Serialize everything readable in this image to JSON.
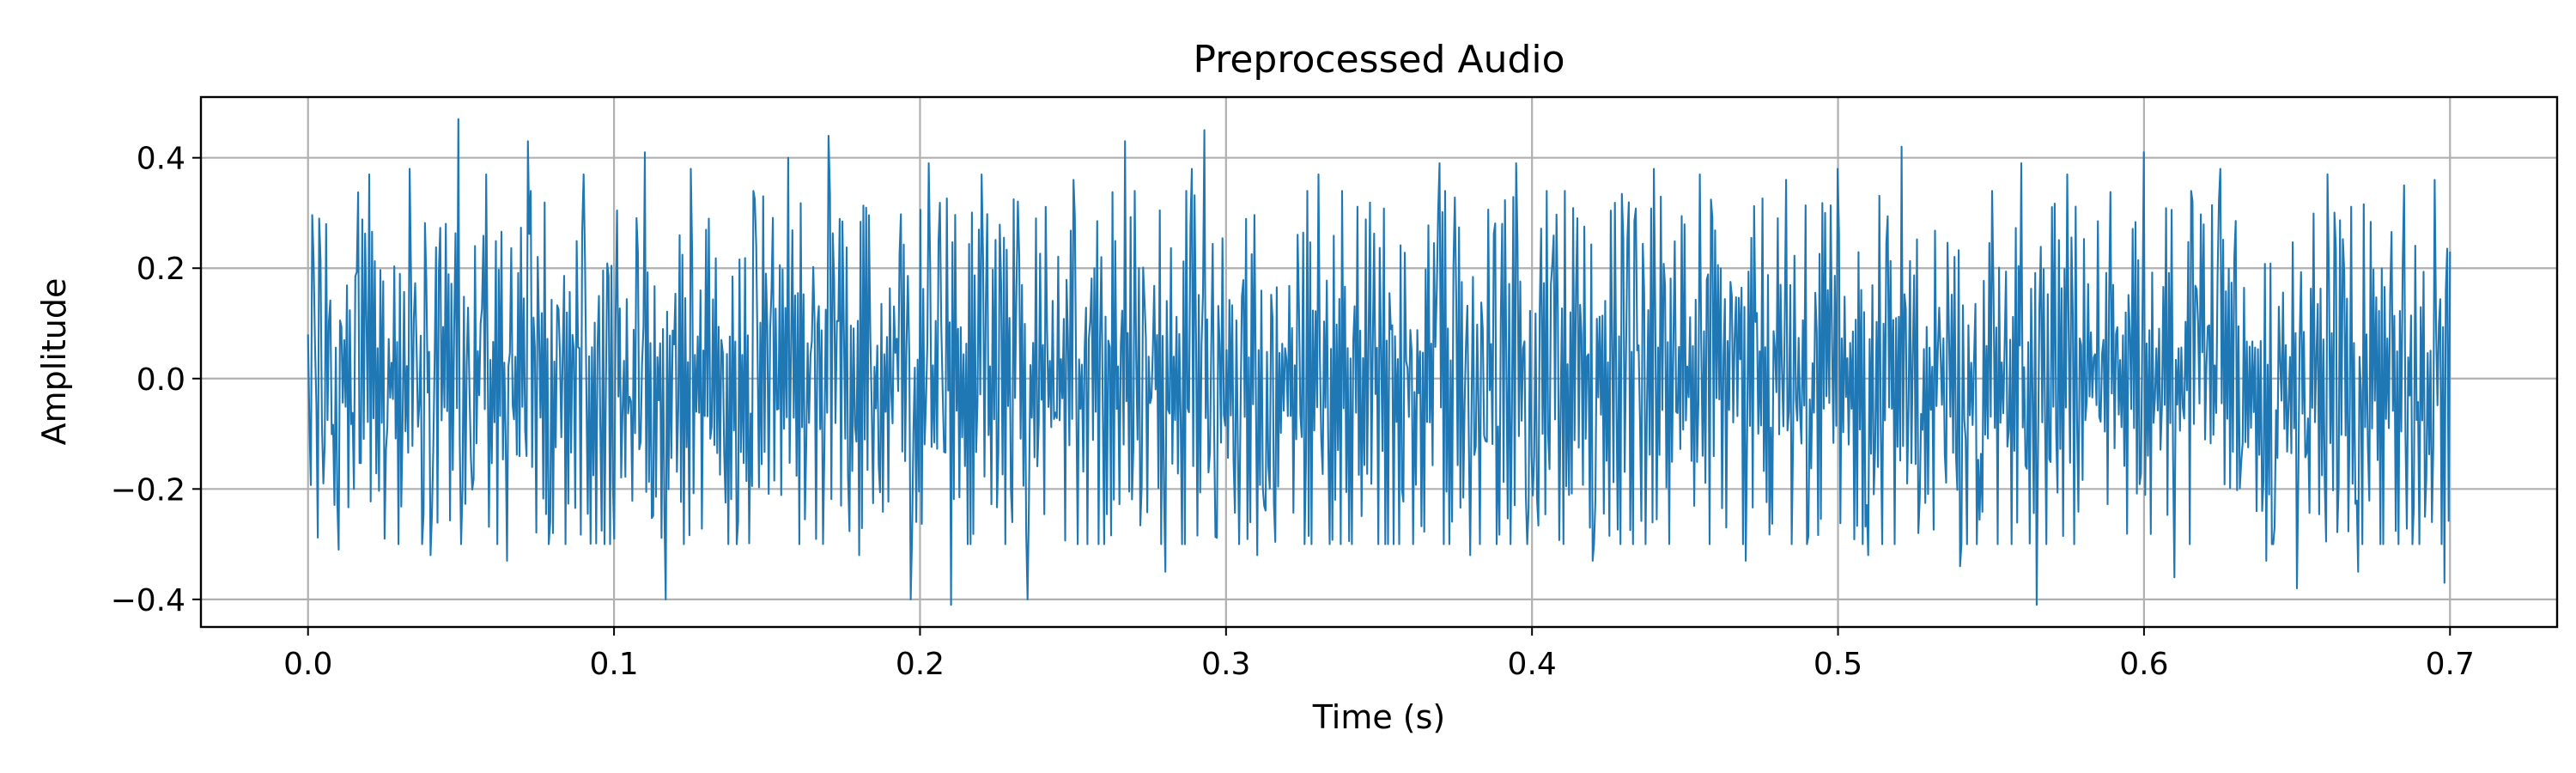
{
  "chart_data": {
    "type": "line",
    "title": "Preprocessed Audio",
    "xlabel": "Time (s)",
    "ylabel": "Amplitude",
    "xlim": [
      -0.035,
      0.735
    ],
    "ylim": [
      -0.45,
      0.51
    ],
    "xticks": [
      0.0,
      0.1,
      0.2,
      0.3,
      0.4,
      0.5,
      0.6,
      0.7
    ],
    "xtick_labels": [
      "0.0",
      "0.1",
      "0.2",
      "0.3",
      "0.4",
      "0.5",
      "0.6",
      "0.7"
    ],
    "yticks": [
      -0.4,
      -0.2,
      0.0,
      0.2,
      0.4
    ],
    "ytick_labels": [
      "−0.4",
      "−0.2",
      "0.0",
      "0.2",
      "0.4"
    ],
    "grid": true,
    "legend": false,
    "series": [
      {
        "color": "#1f77b4",
        "x": [
          0.0,
          0.0035,
          0.005,
          0.006,
          0.01,
          0.02,
          0.025,
          0.033,
          0.04,
          0.049,
          0.05,
          0.058,
          0.065,
          0.072,
          0.08,
          0.09,
          0.1,
          0.11,
          0.117,
          0.125,
          0.14,
          0.157,
          0.17,
          0.18,
          0.197,
          0.203,
          0.21,
          0.22,
          0.235,
          0.25,
          0.267,
          0.28,
          0.289,
          0.293,
          0.31,
          0.33,
          0.355,
          0.37,
          0.38,
          0.395,
          0.42,
          0.44,
          0.455,
          0.47,
          0.483,
          0.49,
          0.5,
          0.51,
          0.521,
          0.54,
          0.56,
          0.565,
          0.575,
          0.6,
          0.61,
          0.625,
          0.64,
          0.65,
          0.66,
          0.67,
          0.685,
          0.69,
          0.695,
          0.698,
          0.7
        ],
        "y": [
          0.08,
          0.29,
          -0.19,
          0.28,
          -0.31,
          0.37,
          -0.29,
          0.38,
          -0.32,
          0.47,
          -0.3,
          0.37,
          -0.33,
          0.43,
          -0.28,
          0.37,
          -0.29,
          0.41,
          -0.4,
          0.38,
          -0.3,
          0.4,
          0.44,
          -0.32,
          -0.4,
          0.39,
          -0.41,
          0.37,
          -0.4,
          0.36,
          0.43,
          -0.35,
          0.38,
          0.45,
          -0.32,
          0.37,
          -0.3,
          0.39,
          -0.32,
          0.39,
          -0.33,
          0.38,
          0.37,
          -0.33,
          0.36,
          -0.3,
          0.38,
          -0.32,
          0.42,
          -0.34,
          0.39,
          -0.41,
          0.37,
          0.41,
          -0.36,
          0.38,
          -0.33,
          -0.38,
          0.37,
          -0.35,
          0.35,
          -0.3,
          0.36,
          -0.37,
          0.23
        ]
      }
    ]
  }
}
